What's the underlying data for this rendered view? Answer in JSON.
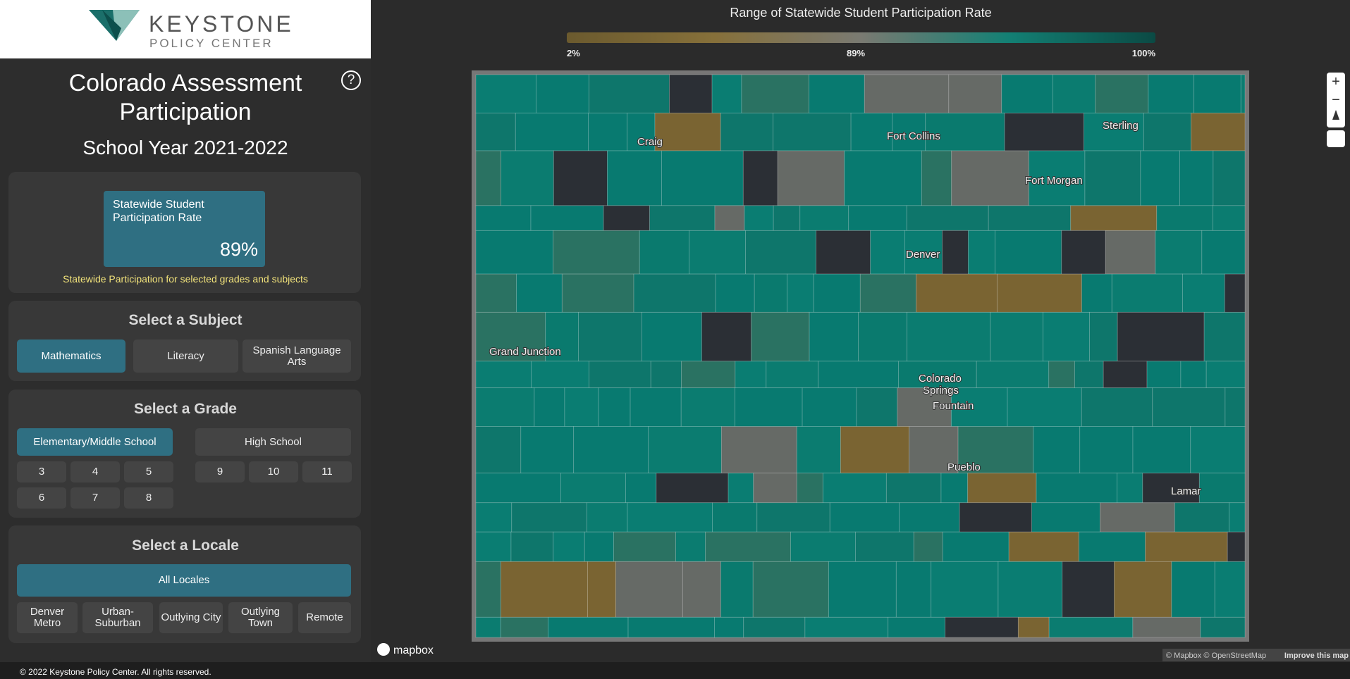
{
  "header": {
    "logo_line1": "KEYSTONE",
    "logo_line2": "POLICY CENTER"
  },
  "sidebar": {
    "title_line1": "Colorado Assessment",
    "title_line2": "Participation",
    "subtitle": "School Year 2021-2022",
    "help": "?",
    "stat": {
      "label_line1": "Statewide Student",
      "label_line2": "Participation Rate",
      "value": "89%",
      "note": "Statewide Participation for selected grades and subjects"
    },
    "subject": {
      "heading": "Select a Subject",
      "options": [
        "Mathematics",
        "Literacy",
        "Spanish Language Arts"
      ],
      "selected": 0
    },
    "grade": {
      "heading": "Select a Grade",
      "levels": [
        "Elementary/Middle School",
        "High School"
      ],
      "selected": 0,
      "elementary_grades": [
        "3",
        "4",
        "5",
        "6",
        "7",
        "8"
      ],
      "high_grades": [
        "9",
        "10",
        "11"
      ]
    },
    "locale": {
      "heading": "Select a Locale",
      "all": "All Locales",
      "options": [
        "Denver Metro",
        "Urban-Suburban",
        "Outlying City",
        "Outlying Town",
        "Remote"
      ]
    }
  },
  "map": {
    "legend_title": "Range of Statewide Student Participation Rate",
    "legend_labels": [
      "2%",
      "89%",
      "100%"
    ],
    "cities": [
      "Craig",
      "Fort Collins",
      "Sterling",
      "Fort Morgan",
      "Denver",
      "Grand Junction",
      "Colorado",
      "Springs",
      "Fountain",
      "Pueblo",
      "Lamar"
    ],
    "brand": "mapbox",
    "attribution": "© Mapbox © OpenStreetMap",
    "improve": "Improve this map",
    "zoom_in": "+",
    "zoom_out": "−"
  },
  "footer": "© 2022 Keystone Policy Center. All rights reserved."
}
